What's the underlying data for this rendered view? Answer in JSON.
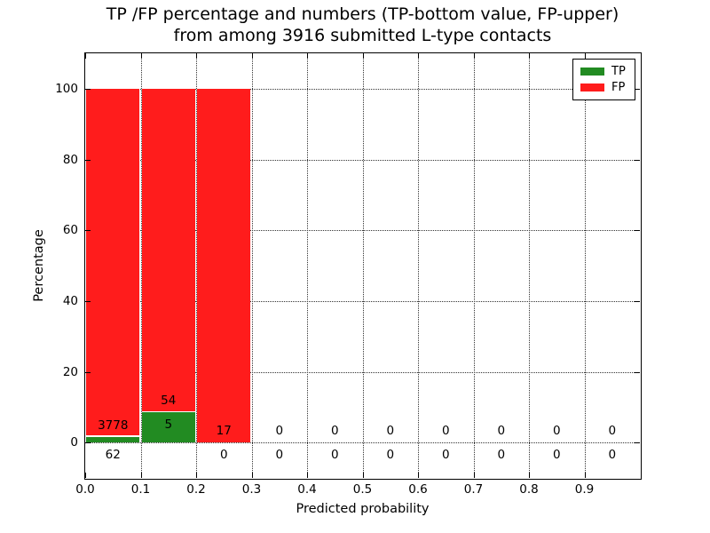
{
  "figure": {
    "title_line1": "TP /FP percentage and numbers (TP-bottom value, FP-upper)",
    "title_line2": "from among 3916 submitted L-type contacts"
  },
  "chart_data": {
    "type": "bar",
    "subtype": "stacked-percentage-histogram",
    "title": "TP /FP percentage and numbers (TP-bottom value, FP-upper) from among 3916 submitted L-type contacts",
    "xlabel": "Predicted probability",
    "ylabel": "Percentage",
    "xlim": [
      0.0,
      1.0
    ],
    "ylim": [
      -10,
      110
    ],
    "x_ticks": [
      "0.0",
      "0.1",
      "0.2",
      "0.3",
      "0.4",
      "0.5",
      "0.6",
      "0.7",
      "0.8",
      "0.9"
    ],
    "y_ticks": [
      0,
      20,
      40,
      60,
      80,
      100
    ],
    "grid": "dotted",
    "total_submitted": 3916,
    "annotation_note": "FP count drawn above baseline per bin, TP count drawn below",
    "legend": {
      "position": "upper right",
      "entries": [
        {
          "label": "TP",
          "color": "#228b22"
        },
        {
          "label": "FP",
          "color": "#ff1c1c"
        }
      ]
    },
    "colors": {
      "tp": "#228b22",
      "fp": "#ff1c1c",
      "grid": "#333333",
      "text": "#000000"
    },
    "bins": [
      {
        "range": [
          0.0,
          0.1
        ],
        "tp_count": 62,
        "fp_count": 3778,
        "tp_pct": 1.61,
        "fp_pct": 98.39
      },
      {
        "range": [
          0.1,
          0.2
        ],
        "tp_count": 5,
        "fp_count": 54,
        "tp_pct": 8.47,
        "fp_pct": 91.53
      },
      {
        "range": [
          0.2,
          0.3
        ],
        "tp_count": 0,
        "fp_count": 17,
        "tp_pct": 0.0,
        "fp_pct": 100.0
      },
      {
        "range": [
          0.3,
          0.4
        ],
        "tp_count": 0,
        "fp_count": 0,
        "tp_pct": 0.0,
        "fp_pct": 0.0
      },
      {
        "range": [
          0.4,
          0.5
        ],
        "tp_count": 0,
        "fp_count": 0,
        "tp_pct": 0.0,
        "fp_pct": 0.0
      },
      {
        "range": [
          0.5,
          0.6
        ],
        "tp_count": 0,
        "fp_count": 0,
        "tp_pct": 0.0,
        "fp_pct": 0.0
      },
      {
        "range": [
          0.6,
          0.7
        ],
        "tp_count": 0,
        "fp_count": 0,
        "tp_pct": 0.0,
        "fp_pct": 0.0
      },
      {
        "range": [
          0.7,
          0.8
        ],
        "tp_count": 0,
        "fp_count": 0,
        "tp_pct": 0.0,
        "fp_pct": 0.0
      },
      {
        "range": [
          0.8,
          0.9
        ],
        "tp_count": 0,
        "fp_count": 0,
        "tp_pct": 0.0,
        "fp_pct": 0.0
      },
      {
        "range": [
          0.9,
          1.0
        ],
        "tp_count": 0,
        "fp_count": 0,
        "tp_pct": 0.0,
        "fp_pct": 0.0
      }
    ]
  }
}
